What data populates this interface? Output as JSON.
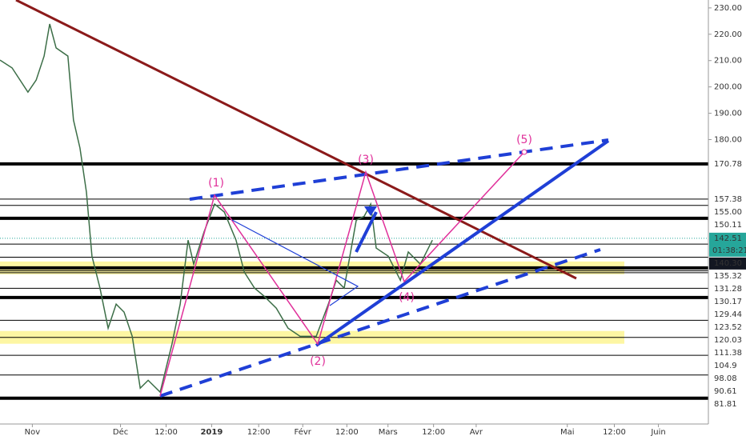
{
  "chart_data": {
    "type": "line",
    "color": "#3c6e47",
    "xlim": [
      -11,
      230
    ],
    "ylim": [
      72,
      233
    ],
    "x": [
      -11,
      -6.9,
      -1.5,
      1.3,
      4,
      5.9,
      8.1,
      12.1,
      14,
      16.2,
      18.4,
      20.3,
      23,
      25.8,
      28.5,
      31.2,
      34,
      36.7,
      39.4,
      43.5,
      47.5,
      50.3,
      53,
      54.9,
      58.4,
      62,
      65.3,
      69.3,
      72.1,
      75.6,
      78.9,
      83,
      87,
      91.1,
      96.6,
      100.7,
      103.4,
      106.1,
      110.2,
      112.9,
      115.1,
      117,
      121.1,
      125.2,
      127.9,
      132,
      136.1
    ],
    "values": [
      210.2,
      207.2,
      198,
      202.6,
      211.7,
      223.9,
      214.8,
      211.7,
      187.4,
      176.8,
      160,
      135.7,
      123.6,
      108.4,
      117.5,
      114.5,
      105.3,
      85.6,
      88.6,
      84.1,
      102.3,
      117.5,
      141.8,
      132.7,
      144.9,
      155.5,
      152.5,
      141.8,
      129.7,
      123.6,
      120.5,
      116,
      108.4,
      105.3,
      105.3,
      117.5,
      126.6,
      123.6,
      149.4,
      150.9,
      155.5,
      138.8,
      135.7,
      126.6,
      137.3,
      132.7,
      141.8
    ],
    "xticks": [
      {
        "value": 0,
        "label": "Nov"
      },
      {
        "value": 30,
        "label": "Déc"
      },
      {
        "value": 45.5,
        "label": "12:00"
      },
      {
        "value": 61,
        "label": "2019"
      },
      {
        "value": 77,
        "label": "12:00"
      },
      {
        "value": 92,
        "label": "Févr"
      },
      {
        "value": 107,
        "label": "12:00"
      },
      {
        "value": 121,
        "label": "Mars"
      },
      {
        "value": 136.5,
        "label": "12:00"
      },
      {
        "value": 151,
        "label": "Avr"
      },
      {
        "value": 182,
        "label": "Mai"
      },
      {
        "value": 198,
        "label": "12:00"
      },
      {
        "value": 213,
        "label": "Juin"
      }
    ],
    "yticks": [
      {
        "value": 230,
        "label": "230.00"
      },
      {
        "value": 220,
        "label": "220.00"
      },
      {
        "value": 210,
        "label": "210.00"
      },
      {
        "value": 200,
        "label": "200.00"
      },
      {
        "value": 190,
        "label": "190.00"
      },
      {
        "value": 180,
        "label": "180.00"
      }
    ],
    "levels": [
      {
        "value": 170.78,
        "bold": true
      },
      {
        "value": 157.38,
        "bold": false
      },
      {
        "value": 155,
        "label": "155.00",
        "bold": false
      },
      {
        "value": 150.11,
        "bold": true
      },
      {
        "value": 140.3,
        "label": "140.30",
        "bold": false,
        "label_color": "#131722"
      },
      {
        "value": 135.32,
        "bold": false
      },
      {
        "value": 131.28,
        "bold": true,
        "band_color": "#fdf6a3"
      },
      {
        "value": 130.17,
        "bold": false
      },
      {
        "value": 129.44,
        "bold": false
      },
      {
        "value": 123.52,
        "bold": false
      },
      {
        "value": 120.03,
        "bold": true
      },
      {
        "value": 111.38,
        "bold": false
      },
      {
        "value": 104.9,
        "bold": false,
        "band_color": "#fdf6a3"
      },
      {
        "value": 98.08,
        "bold": false
      },
      {
        "value": 90.61,
        "bold": false
      },
      {
        "value": 81.81,
        "bold": true
      }
    ],
    "last_price": {
      "value": 142.51,
      "countdown": "01:38:21",
      "color": "#26a69a"
    },
    "annotations": [
      "(1)",
      "(2)",
      "(3)",
      "(4)",
      "(5)"
    ]
  }
}
